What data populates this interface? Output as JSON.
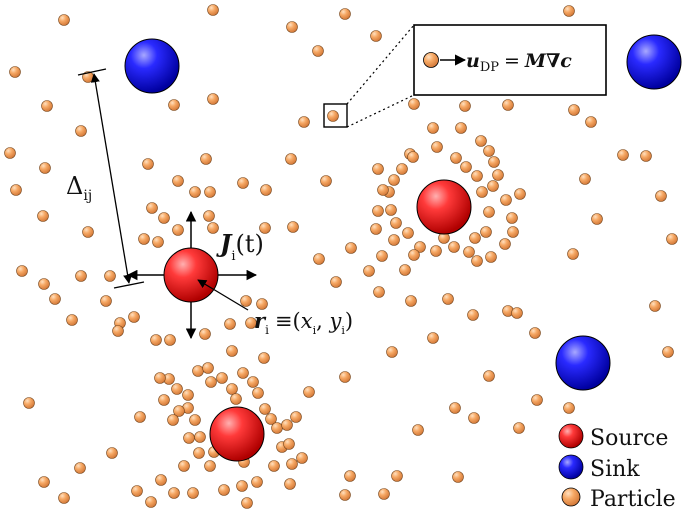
{
  "labels": {
    "distance_main": "Δ",
    "distance_sub": "ij",
    "flux_main": "J",
    "flux_sub": "i",
    "flux_arg": "(t)",
    "position_main": "r",
    "position_sub": "i",
    "position_eq": "≡",
    "position_x": "x",
    "position_y": "y",
    "position_x_sub": "i",
    "position_y_sub": "i",
    "inset_u": "u",
    "inset_u_sub": "DP",
    "inset_eq": "=",
    "inset_M": "M",
    "inset_grad": "∇",
    "inset_c": "c"
  },
  "legend": {
    "source": "Source",
    "sink": "Sink",
    "particle": "Particle"
  },
  "colors": {
    "source": "#e8141a",
    "sink": "#1417e6",
    "particle": "#f4a868"
  },
  "sources": [
    {
      "name": "source-left-center"
    },
    {
      "name": "source-right-center"
    },
    {
      "name": "source-bottom-left"
    }
  ],
  "sinks": [
    {
      "name": "sink-top-left"
    },
    {
      "name": "sink-top-right"
    },
    {
      "name": "sink-bottom-right"
    }
  ]
}
